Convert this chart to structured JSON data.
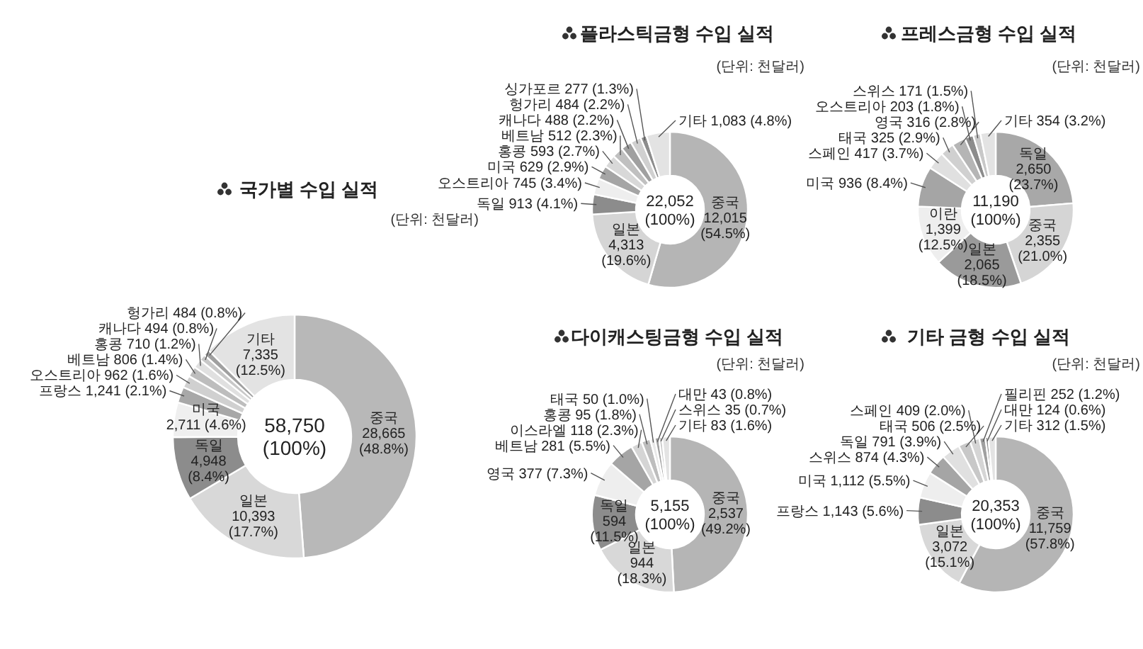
{
  "chart_data": [
    {
      "type": "donut",
      "title": "국가별 수입 실적",
      "annotations": [
        "(단위: 천달러)",
        "58,750 (100%)"
      ],
      "categories": [
        "중국",
        "일본",
        "독일",
        "미국",
        "프랑스",
        "오스트리아",
        "베트남",
        "홍콩",
        "캐나다",
        "헝가리",
        "기타"
      ],
      "values": [
        28665,
        10393,
        4948,
        2711,
        1241,
        962,
        806,
        710,
        494,
        484,
        7335
      ],
      "value_labels": [
        "28,665 (48.8%)",
        "10,393 (17.7%)",
        "4,948 (8.4%)",
        "2,711 (4.6%)",
        "1,241 (2.1%)",
        "962 (1.6%)",
        "806 (1.4%)",
        "710 (1.2%)",
        "494 (0.8%)",
        "484 (0.8%)",
        "7,335 (12.5%)"
      ],
      "colors": [
        "#b8b8b8",
        "#d8d8d8",
        "#8c8c8c",
        "#efefef",
        "#a8a8a8",
        "#d0d0d0",
        "#bdbdbd",
        "#e0e0e0",
        "#c8c8c8",
        "#a0a0a0",
        "#e3e3e3"
      ]
    },
    {
      "type": "donut",
      "title": "플라스틱금형 수입 실적",
      "annotations": [
        "(단위: 천달러)",
        "22,052 (100%)"
      ],
      "categories": [
        "중국",
        "일본",
        "독일",
        "오스트리아",
        "미국",
        "홍콩",
        "베트남",
        "캐나다",
        "헝가리",
        "싱가포르",
        "기타"
      ],
      "values": [
        12015,
        4313,
        913,
        745,
        629,
        593,
        512,
        488,
        484,
        277,
        1083
      ],
      "value_labels": [
        "12,015 (54.5%)",
        "4,313 (19.6%)",
        "913 (4.1%)",
        "745 (3.4%)",
        "629 (2.9%)",
        "593 (2.7%)",
        "512 (2.3%)",
        "488 (2.2%)",
        "484 (2.2%)",
        "277 (1.3%)",
        "1,083 (4.8%)"
      ],
      "colors": [
        "#b5b5b5",
        "#d5d5d5",
        "#8c8c8c",
        "#eeeeee",
        "#a5a5a5",
        "#d8d8d8",
        "#c0c0c0",
        "#a0a0a0",
        "#d0d0d0",
        "#8c8c8c",
        "#e3e3e3"
      ]
    },
    {
      "type": "donut",
      "title": "프레스금형 수입 실적",
      "annotations": [
        "(단위: 천달러)",
        "11,190 (100%)"
      ],
      "categories": [
        "독일",
        "중국",
        "일본",
        "이란",
        "미국",
        "스페인",
        "태국",
        "영국",
        "오스트리아",
        "스위스",
        "기타"
      ],
      "values": [
        2650,
        2355,
        2065,
        1399,
        936,
        417,
        325,
        316,
        203,
        171,
        354
      ],
      "value_labels": [
        "2,650 (23.7%)",
        "2,355 (21.0%)",
        "2,065 (18.5%)",
        "1,399 (12.5%)",
        "936 (8.4%)",
        "417 (3.7%)",
        "325 (2.9%)",
        "316 (2.8%)",
        "203 (1.8%)",
        "171 (1.5%)",
        "354 (3.2%)"
      ],
      "colors": [
        "#a8a8a8",
        "#d5d5d5",
        "#9a9a9a",
        "#eeeeee",
        "#a5a5a5",
        "#e0e0e0",
        "#d0d0d0",
        "#b5b5b5",
        "#8c8c8c",
        "#c8c8c8",
        "#e3e3e3"
      ]
    },
    {
      "type": "donut",
      "title": "다이캐스팅금형 수입 실적",
      "annotations": [
        "(단위: 천달러)",
        "5,155 (100%)"
      ],
      "categories": [
        "중국",
        "일본",
        "독일",
        "영국",
        "베트남",
        "이스라엘",
        "홍콩",
        "태국",
        "대만",
        "스위스",
        "기타"
      ],
      "values": [
        2537,
        944,
        594,
        377,
        281,
        118,
        95,
        50,
        43,
        35,
        83
      ],
      "value_labels": [
        "2,537 (49.2%)",
        "944 (18.3%)",
        "594 (11.5%)",
        "377 (7.3%)",
        "281 (5.5%)",
        "118 (2.3%)",
        "95 (1.8%)",
        "50 (1.0%)",
        "43 (0.8%)",
        "35 (0.7%)",
        "83 (1.6%)"
      ],
      "colors": [
        "#b5b5b5",
        "#d8d8d8",
        "#8c8c8c",
        "#eeeeee",
        "#a5a5a5",
        "#d5d5d5",
        "#bdbdbd",
        "#e8e8e8",
        "#a0a0a0",
        "#c8c8c8",
        "#e3e3e3"
      ]
    },
    {
      "type": "donut",
      "title": "기타 금형 수입 실적",
      "annotations": [
        "(단위: 천달러)",
        "20,353 (100%)"
      ],
      "categories": [
        "중국",
        "일본",
        "프랑스",
        "미국",
        "스위스",
        "독일",
        "태국",
        "스페인",
        "필리핀",
        "대만",
        "기타"
      ],
      "values": [
        11759,
        3072,
        1143,
        1112,
        874,
        791,
        506,
        409,
        252,
        124,
        312
      ],
      "value_labels": [
        "11,759 (57.8%)",
        "3,072 (15.1%)",
        "1,143 (5.6%)",
        "1,112 (5.5%)",
        "874 (4.3%)",
        "791 (3.9%)",
        "506 (2.5%)",
        "409 (2.0%)",
        "252 (1.2%)",
        "124 (0.6%)",
        "312 (1.5%)"
      ],
      "colors": [
        "#b5b5b5",
        "#d8d8d8",
        "#8c8c8c",
        "#eeeeee",
        "#a5a5a5",
        "#e0e0e0",
        "#c8c8c8",
        "#d5d5d5",
        "#a0a0a0",
        "#8c8c8c",
        "#e3e3e3"
      ]
    }
  ]
}
